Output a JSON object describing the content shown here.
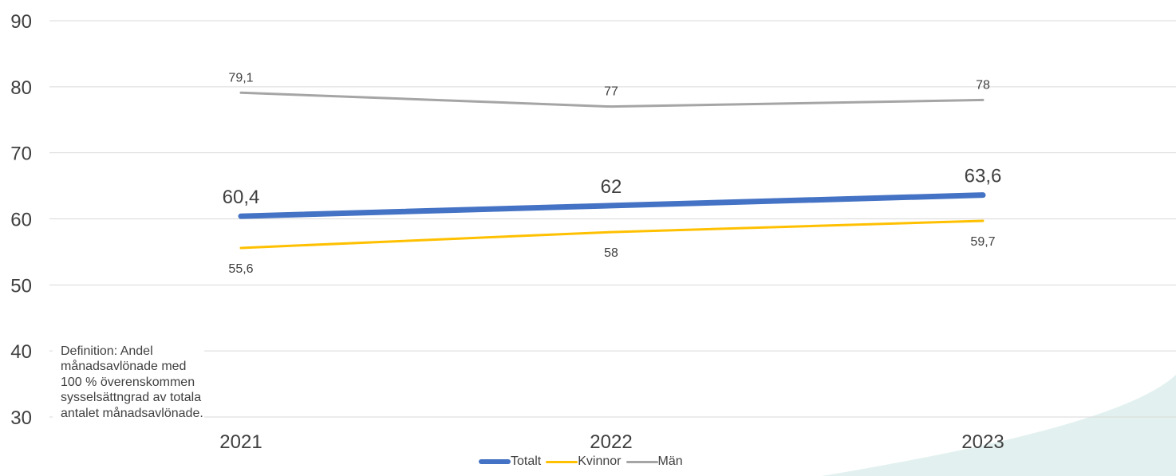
{
  "chart_data": {
    "type": "line",
    "categories": [
      "2021",
      "2022",
      "2023"
    ],
    "ylim": [
      30,
      90
    ],
    "yticks": [
      90,
      80,
      70,
      60,
      50,
      40,
      30
    ],
    "grid": true,
    "legend_position": "bottom",
    "series": [
      {
        "name": "Totalt",
        "values": [
          60.4,
          62,
          63.6
        ],
        "labels": [
          "60,4",
          "62",
          "63,6"
        ],
        "color": "#4472C4",
        "label_position": "above"
      },
      {
        "name": "Kvinnor",
        "values": [
          55.6,
          58,
          59.7
        ],
        "labels": [
          "55,6",
          "58",
          "59,7"
        ],
        "color": "#FFC000",
        "label_position": "below"
      },
      {
        "name": "Män",
        "values": [
          79.1,
          77,
          78
        ],
        "labels": [
          "79,1",
          "77",
          "78"
        ],
        "color": "#A5A5A5",
        "label_position": "above"
      }
    ]
  },
  "definition_text": "Definition: Andel månadsavlönade med 100 % överenskommen sysselsättngrad av totala antalet månadsavlönade.",
  "decoration_color": "#E2F1EF"
}
